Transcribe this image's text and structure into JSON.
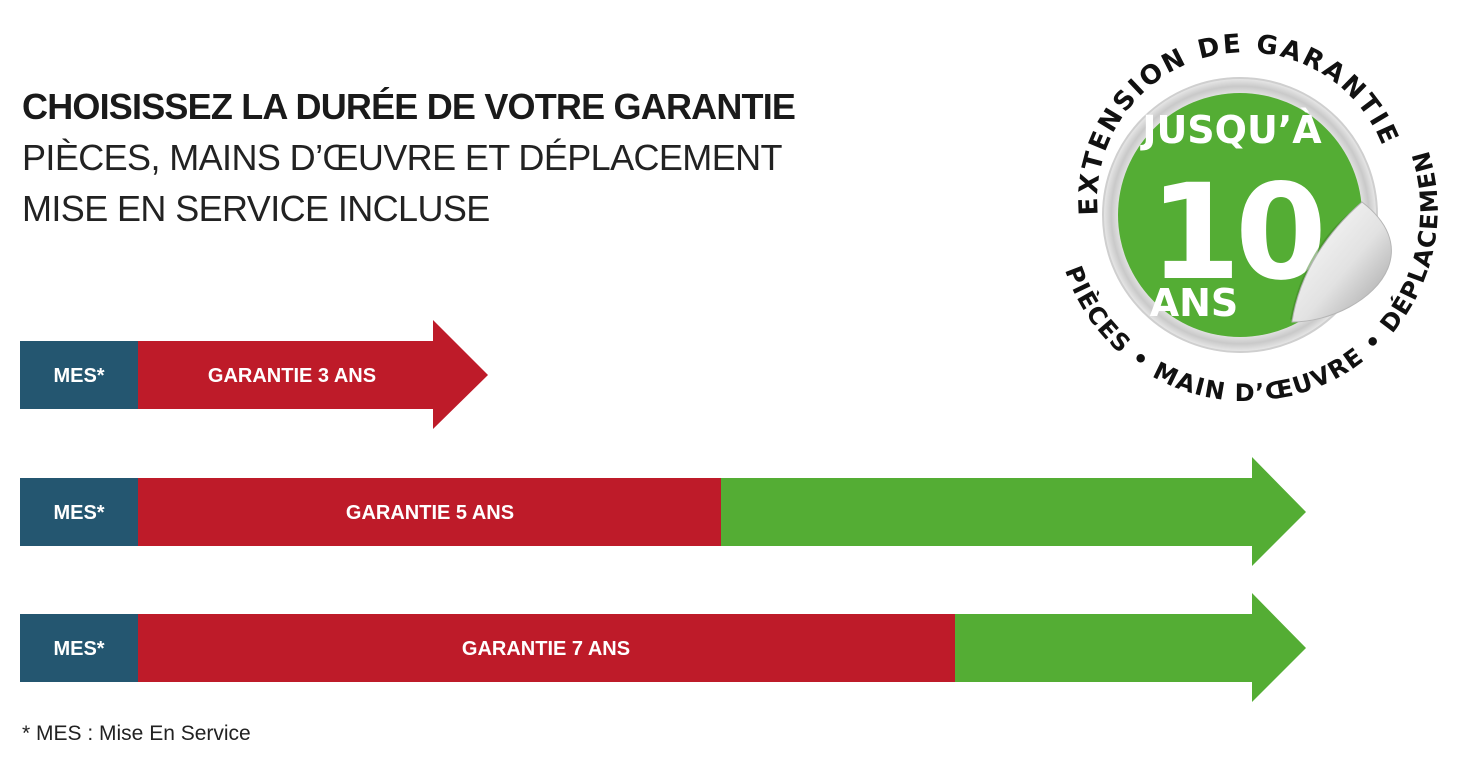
{
  "header": {
    "title": "CHOISISSEZ LA DURÉE DE VOTRE GARANTIE",
    "subtitle_line1": "PIÈCES, MAINS D’ŒUVRE ET DÉPLACEMENT",
    "subtitle_line2": "MISE EN SERVICE INCLUSE"
  },
  "colors": {
    "mes": "#245670",
    "warranty": "#be1b29",
    "extension": "#54ad34"
  },
  "bars": [
    {
      "mes_label": "MES*",
      "warranty_label": "GARANTIE 3 ANS",
      "years": 3,
      "has_extension": false
    },
    {
      "mes_label": "MES*",
      "warranty_label": "GARANTIE 5 ANS",
      "years": 5,
      "has_extension": true
    },
    {
      "mes_label": "MES*",
      "warranty_label": "GARANTIE 7 ANS",
      "years": 7,
      "has_extension": true
    }
  ],
  "badge": {
    "ring_top": "EXTENSION DE GARANTIE",
    "ring_bottom": "PIÈCES • MAIN D’ŒUVRE • DÉPLACEMENT",
    "line1": "JUSQU’À",
    "number": "10",
    "unit": "ANS",
    "max_years": 10
  },
  "footnote": "* MES : Mise En Service"
}
